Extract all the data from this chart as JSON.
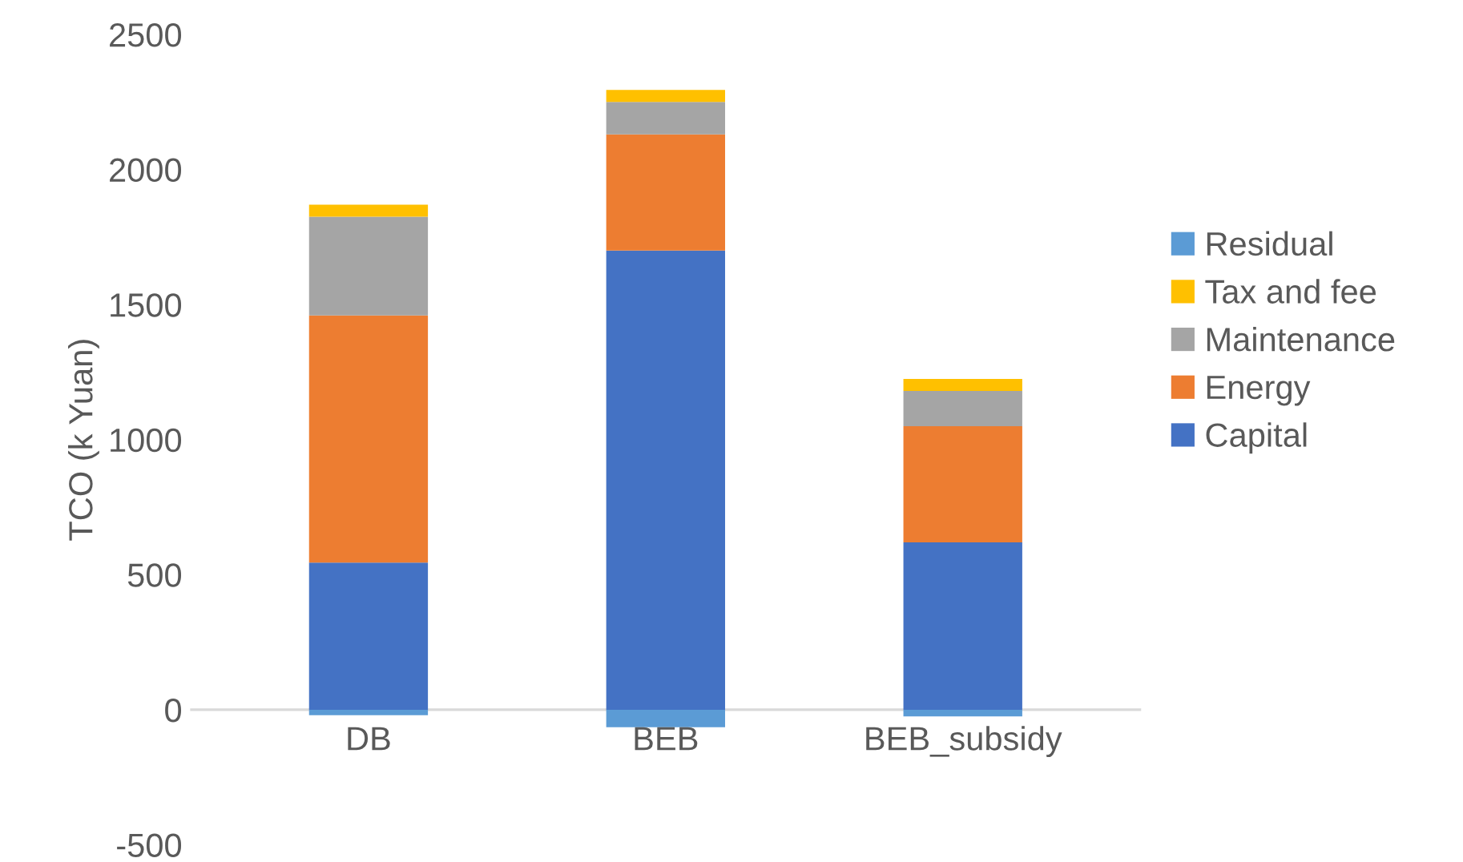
{
  "chart_data": {
    "type": "bar",
    "stacked": true,
    "ylabel": "TCO (k Yuan)",
    "categories": [
      "DB",
      "BEB",
      "BEB_subsidy"
    ],
    "series": [
      {
        "name": "Capital",
        "color": "#4472c4",
        "values": [
          545,
          1700,
          620
        ]
      },
      {
        "name": "Energy",
        "color": "#ed7d31",
        "values": [
          915,
          430,
          430
        ]
      },
      {
        "name": "Maintenance",
        "color": "#a5a5a5",
        "values": [
          365,
          120,
          130
        ]
      },
      {
        "name": "Tax and fee",
        "color": "#ffc000",
        "values": [
          45,
          45,
          45
        ]
      },
      {
        "name": "Residual",
        "color": "#5b9bd5",
        "values": [
          -20,
          -65,
          -25
        ]
      }
    ],
    "ylim": [
      -500,
      2500
    ],
    "yticks": [
      -500,
      0,
      500,
      1000,
      1500,
      2000,
      2500
    ],
    "grid": false,
    "legend": "right"
  }
}
